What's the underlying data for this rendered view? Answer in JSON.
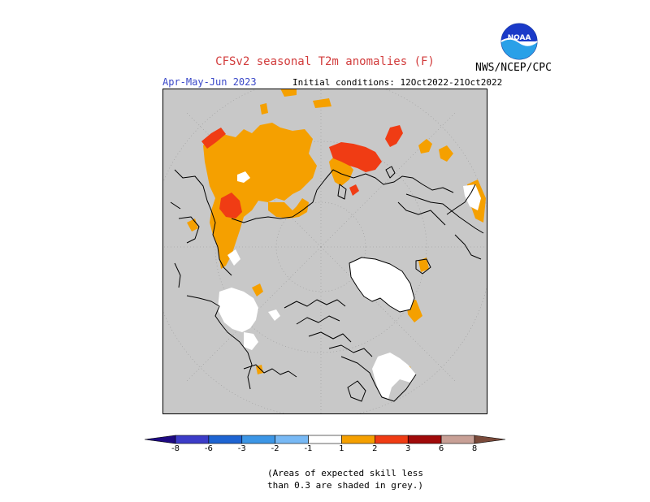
{
  "header": {
    "title": "CFSv2 seasonal T2m anomalies (F)",
    "period": "Apr-May-Jun 2023",
    "initial_conditions": "Initial conditions: 12Oct2022-21Oct2022",
    "agency": "NWS/NCEP/CPC",
    "logo_text": "NOAA"
  },
  "map": {
    "projection": "north-polar-stereographic",
    "background_color": "#c8c8c8",
    "no_skill_color": "#c8c8c8",
    "regions": [
      {
        "name": "eurasia-warm",
        "category": "1 to 2",
        "color": "#f5a000"
      },
      {
        "name": "western-russia-warm",
        "category": "1 to 2",
        "color": "#f5a000"
      },
      {
        "name": "east-siberia-hot",
        "category": "2 to 3",
        "color": "#f03c14"
      },
      {
        "name": "caspian-hot",
        "category": "2 to 3",
        "color": "#f03c14"
      },
      {
        "name": "europe-warm",
        "category": "1 to 2",
        "color": "#f5a000"
      },
      {
        "name": "alaska-near-normal",
        "category": "-1 to 1",
        "color": "#ffffff"
      },
      {
        "name": "greenland-near-normal",
        "category": "-1 to 1",
        "color": "#ffffff"
      },
      {
        "name": "canada-near-normal",
        "category": "-1 to 1",
        "color": "#ffffff"
      }
    ]
  },
  "colorbar": {
    "labels": [
      "-8",
      "-6",
      "-3",
      "-2",
      "-1",
      "1",
      "2",
      "3",
      "6",
      "8"
    ],
    "bins": [
      {
        "from": "-inf",
        "to": -8,
        "color": "#1e0a82"
      },
      {
        "from": -8,
        "to": -6,
        "color": "#3c3cc8"
      },
      {
        "from": -6,
        "to": -3,
        "color": "#1e64d2"
      },
      {
        "from": -3,
        "to": -2,
        "color": "#3c96e6"
      },
      {
        "from": -2,
        "to": -1,
        "color": "#78b9f5"
      },
      {
        "from": -1,
        "to": 1,
        "color": "#ffffff"
      },
      {
        "from": 1,
        "to": 2,
        "color": "#f5a000"
      },
      {
        "from": 2,
        "to": 3,
        "color": "#f03c14"
      },
      {
        "from": 3,
        "to": 6,
        "color": "#a00a0a"
      },
      {
        "from": 6,
        "to": 8,
        "color": "#c8a096"
      },
      {
        "from": 8,
        "to": "inf",
        "color": "#7a4a3a"
      }
    ]
  },
  "footnote": {
    "line1": "(Areas of expected skill less",
    "line2": "than 0.3 are shaded in grey.)"
  }
}
